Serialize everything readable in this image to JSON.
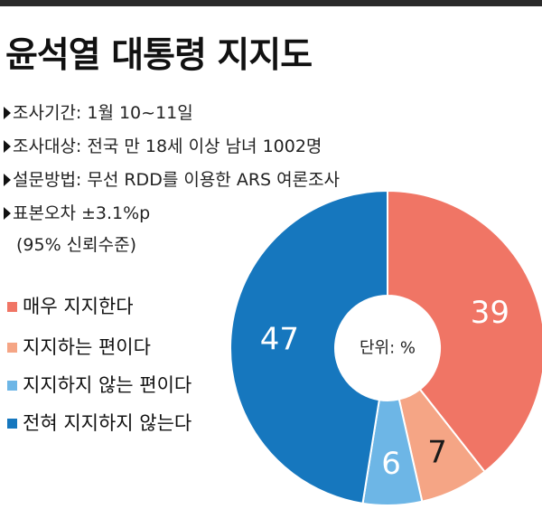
{
  "title": "윤석열 대통령 지지도",
  "info": [
    {
      "label": "조사기간: 1월 10~11일"
    },
    {
      "label": "조사대상: 전국 만 18세 이상 남녀 1002명"
    },
    {
      "label": "설문방법: 무선 RDD를 이용한 ARS 여론조사"
    },
    {
      "label": "표본오차 ±3.1%p"
    }
  ],
  "info_sub": "(95% 신뢰수준)",
  "colors": {
    "strong_support": "#f07565",
    "somewhat_support": "#f5a585",
    "somewhat_oppose": "#6db6e6",
    "strong_oppose": "#1677be"
  },
  "chart_data": {
    "type": "pie",
    "donut": true,
    "center_label": "단위: %",
    "slices": [
      {
        "name": "매우 지지한다",
        "value": 39,
        "color": "#f07565",
        "label_color": "#ffffff"
      },
      {
        "name": "지지하는 편이다",
        "value": 7,
        "color": "#f5a585",
        "label_color": "#1a1a1a"
      },
      {
        "name": "지지하지 않는 편이다",
        "value": 6,
        "color": "#6db6e6",
        "label_color": "#ffffff"
      },
      {
        "name": "전혀 지지하지 않는다",
        "value": 47,
        "color": "#1677be",
        "label_color": "#ffffff"
      }
    ],
    "legend_placement": "left"
  }
}
